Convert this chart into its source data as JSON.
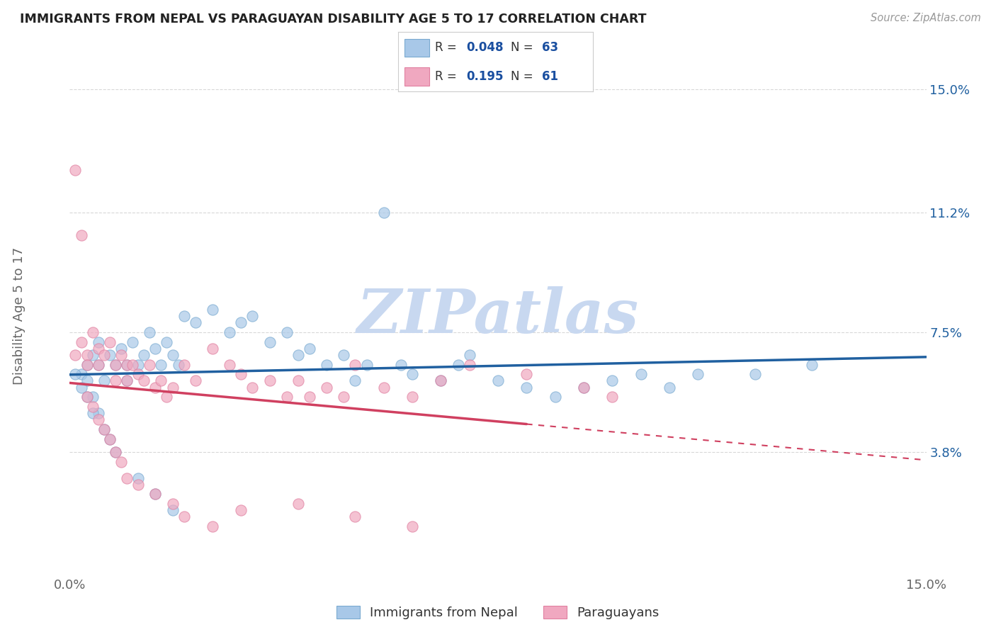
{
  "title": "IMMIGRANTS FROM NEPAL VS PARAGUAYAN DISABILITY AGE 5 TO 17 CORRELATION CHART",
  "source": "Source: ZipAtlas.com",
  "ylabel": "Disability Age 5 to 17",
  "xmin": 0.0,
  "xmax": 0.15,
  "ymin": 0.0,
  "ymax": 0.16,
  "yticks": [
    0.038,
    0.075,
    0.112,
    0.15
  ],
  "ytick_labels": [
    "3.8%",
    "7.5%",
    "11.2%",
    "15.0%"
  ],
  "xticks": [
    0.0,
    0.15
  ],
  "xtick_labels": [
    "0.0%",
    "15.0%"
  ],
  "blue_color": "#a8c8e8",
  "pink_color": "#f0a8c0",
  "blue_edge_color": "#7aaad0",
  "pink_edge_color": "#e080a0",
  "blue_line_color": "#2060a0",
  "pink_line_color": "#d04060",
  "blue_r": "0.048",
  "blue_n": "63",
  "pink_r": "0.195",
  "pink_n": "61",
  "legend_text_color": "#333333",
  "legend_value_color": "#1a4fa0",
  "blue_scatter": [
    [
      0.002,
      0.062
    ],
    [
      0.003,
      0.065
    ],
    [
      0.004,
      0.068
    ],
    [
      0.005,
      0.072
    ],
    [
      0.005,
      0.065
    ],
    [
      0.006,
      0.06
    ],
    [
      0.007,
      0.068
    ],
    [
      0.008,
      0.065
    ],
    [
      0.009,
      0.07
    ],
    [
      0.01,
      0.065
    ],
    [
      0.01,
      0.06
    ],
    [
      0.011,
      0.072
    ],
    [
      0.012,
      0.065
    ],
    [
      0.013,
      0.068
    ],
    [
      0.014,
      0.075
    ],
    [
      0.015,
      0.07
    ],
    [
      0.016,
      0.065
    ],
    [
      0.017,
      0.072
    ],
    [
      0.018,
      0.068
    ],
    [
      0.019,
      0.065
    ],
    [
      0.02,
      0.08
    ],
    [
      0.022,
      0.078
    ],
    [
      0.025,
      0.082
    ],
    [
      0.028,
      0.075
    ],
    [
      0.03,
      0.078
    ],
    [
      0.032,
      0.08
    ],
    [
      0.035,
      0.072
    ],
    [
      0.038,
      0.075
    ],
    [
      0.04,
      0.068
    ],
    [
      0.042,
      0.07
    ],
    [
      0.045,
      0.065
    ],
    [
      0.048,
      0.068
    ],
    [
      0.05,
      0.06
    ],
    [
      0.052,
      0.065
    ],
    [
      0.055,
      0.112
    ],
    [
      0.058,
      0.065
    ],
    [
      0.06,
      0.062
    ],
    [
      0.065,
      0.06
    ],
    [
      0.068,
      0.065
    ],
    [
      0.07,
      0.068
    ],
    [
      0.075,
      0.06
    ],
    [
      0.08,
      0.058
    ],
    [
      0.085,
      0.055
    ],
    [
      0.09,
      0.058
    ],
    [
      0.095,
      0.06
    ],
    [
      0.1,
      0.062
    ],
    [
      0.105,
      0.058
    ],
    [
      0.11,
      0.062
    ],
    [
      0.12,
      0.062
    ],
    [
      0.13,
      0.065
    ],
    [
      0.003,
      0.06
    ],
    [
      0.004,
      0.055
    ],
    [
      0.005,
      0.05
    ],
    [
      0.006,
      0.045
    ],
    [
      0.007,
      0.042
    ],
    [
      0.008,
      0.038
    ],
    [
      0.001,
      0.062
    ],
    [
      0.002,
      0.058
    ],
    [
      0.003,
      0.055
    ],
    [
      0.004,
      0.05
    ],
    [
      0.012,
      0.03
    ],
    [
      0.015,
      0.025
    ],
    [
      0.018,
      0.02
    ]
  ],
  "pink_scatter": [
    [
      0.001,
      0.125
    ],
    [
      0.002,
      0.105
    ],
    [
      0.001,
      0.068
    ],
    [
      0.002,
      0.072
    ],
    [
      0.003,
      0.068
    ],
    [
      0.003,
      0.065
    ],
    [
      0.004,
      0.075
    ],
    [
      0.005,
      0.07
    ],
    [
      0.005,
      0.065
    ],
    [
      0.006,
      0.068
    ],
    [
      0.007,
      0.072
    ],
    [
      0.008,
      0.065
    ],
    [
      0.008,
      0.06
    ],
    [
      0.009,
      0.068
    ],
    [
      0.01,
      0.065
    ],
    [
      0.01,
      0.06
    ],
    [
      0.011,
      0.065
    ],
    [
      0.012,
      0.062
    ],
    [
      0.013,
      0.06
    ],
    [
      0.014,
      0.065
    ],
    [
      0.015,
      0.058
    ],
    [
      0.016,
      0.06
    ],
    [
      0.017,
      0.055
    ],
    [
      0.018,
      0.058
    ],
    [
      0.02,
      0.065
    ],
    [
      0.022,
      0.06
    ],
    [
      0.025,
      0.07
    ],
    [
      0.028,
      0.065
    ],
    [
      0.03,
      0.062
    ],
    [
      0.032,
      0.058
    ],
    [
      0.035,
      0.06
    ],
    [
      0.038,
      0.055
    ],
    [
      0.04,
      0.06
    ],
    [
      0.042,
      0.055
    ],
    [
      0.045,
      0.058
    ],
    [
      0.048,
      0.055
    ],
    [
      0.05,
      0.065
    ],
    [
      0.055,
      0.058
    ],
    [
      0.06,
      0.055
    ],
    [
      0.065,
      0.06
    ],
    [
      0.07,
      0.065
    ],
    [
      0.08,
      0.062
    ],
    [
      0.09,
      0.058
    ],
    [
      0.095,
      0.055
    ],
    [
      0.003,
      0.055
    ],
    [
      0.004,
      0.052
    ],
    [
      0.005,
      0.048
    ],
    [
      0.006,
      0.045
    ],
    [
      0.007,
      0.042
    ],
    [
      0.008,
      0.038
    ],
    [
      0.009,
      0.035
    ],
    [
      0.01,
      0.03
    ],
    [
      0.012,
      0.028
    ],
    [
      0.015,
      0.025
    ],
    [
      0.018,
      0.022
    ],
    [
      0.02,
      0.018
    ],
    [
      0.025,
      0.015
    ],
    [
      0.03,
      0.02
    ],
    [
      0.04,
      0.022
    ],
    [
      0.05,
      0.018
    ],
    [
      0.06,
      0.015
    ]
  ],
  "watermark_text": "ZIPatlas",
  "watermark_color": "#c8d8f0",
  "background_color": "#ffffff",
  "grid_color": "#d8d8d8"
}
